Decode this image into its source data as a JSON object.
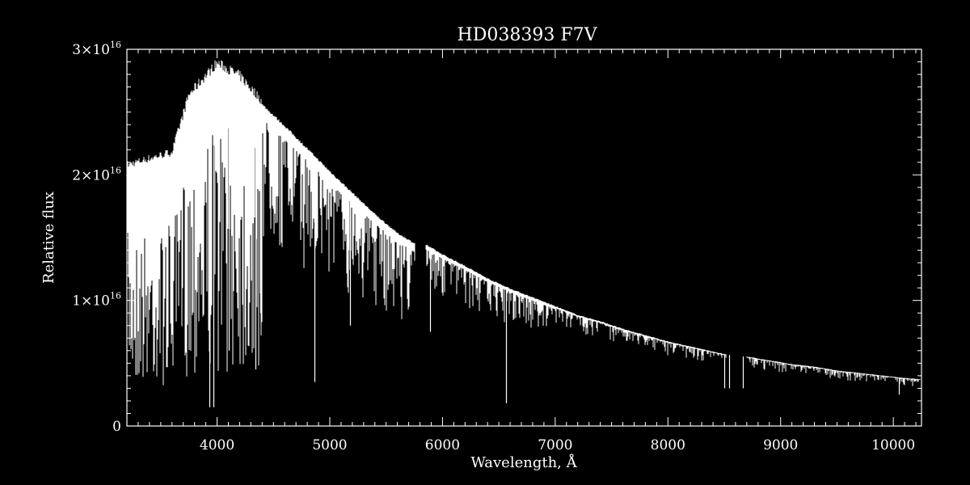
{
  "chart_data": {
    "type": "line",
    "title": "HD038393   F7V",
    "xlabel": "Wavelength, Å",
    "ylabel": "Relative flux",
    "xlim": [
      3200,
      10250
    ],
    "ylim": [
      0,
      3e+16
    ],
    "xticks": [
      4000,
      5000,
      6000,
      7000,
      8000,
      9000,
      10000
    ],
    "yticks": [
      {
        "value": 0,
        "mantissa": "0",
        "exponent": ""
      },
      {
        "value": 1e+16,
        "mantissa": "1×10",
        "exponent": "16"
      },
      {
        "value": 2e+16,
        "mantissa": "2×10",
        "exponent": "16"
      },
      {
        "value": 3e+16,
        "mantissa": "3×10",
        "exponent": "16"
      }
    ],
    "grid": false,
    "colors": {
      "background": "#000000",
      "foreground": "#ffffff"
    },
    "series": [
      {
        "continuum": [
          [
            3200,
            2.05e+16
          ],
          [
            3400,
            2.1e+16
          ],
          [
            3600,
            2.15e+16
          ],
          [
            3750,
            2.6e+16
          ],
          [
            3900,
            2.75e+16
          ],
          [
            4000,
            2.85e+16
          ],
          [
            4200,
            2.75e+16
          ],
          [
            4400,
            2.55e+16
          ],
          [
            4600,
            2.38e+16
          ],
          [
            4800,
            2.2e+16
          ],
          [
            5000,
            2.02e+16
          ],
          [
            5200,
            1.85e+16
          ],
          [
            5400,
            1.68e+16
          ],
          [
            5600,
            1.53e+16
          ],
          [
            5750,
            1.45e+16
          ],
          [
            5850,
            1.44e+16
          ],
          [
            6000,
            1.36e+16
          ],
          [
            6200,
            1.27e+16
          ],
          [
            6400,
            1.17e+16
          ],
          [
            6600,
            1.09e+16
          ],
          [
            6800,
            1.02e+16
          ],
          [
            7000,
            9500000000000000.0
          ],
          [
            7200,
            8800000000000000.0
          ],
          [
            7400,
            8300000000000000.0
          ],
          [
            7600,
            7700000000000000.0
          ],
          [
            7800,
            7200000000000000.0
          ],
          [
            8000,
            6700000000000000.0
          ],
          [
            8200,
            6300000000000000.0
          ],
          [
            8400,
            5900000000000000.0
          ],
          [
            8500,
            5700000000000000.0
          ],
          [
            8700,
            5500000000000000.0
          ],
          [
            8900,
            5200000000000000.0
          ],
          [
            9100,
            4900000000000000.0
          ],
          [
            9300,
            4700000000000000.0
          ],
          [
            9500,
            4400000000000000.0
          ],
          [
            9700,
            4200000000000000.0
          ],
          [
            9900,
            4000000000000000.0
          ],
          [
            10100,
            3800000000000000.0
          ],
          [
            10250,
            3700000000000000.0
          ]
        ],
        "gaps": [
          [
            5760,
            5850
          ],
          [
            8520,
            8700
          ]
        ],
        "absorption_lines": [
          [
            3934,
            1500000000000000.0
          ],
          [
            3968,
            1500000000000000.0
          ],
          [
            4101,
            6000000000000000.0
          ],
          [
            4340,
            4500000000000000.0
          ],
          [
            4383,
            9000000000000000.0
          ],
          [
            4861,
            3500000000000000.0
          ],
          [
            5167,
            1.4e+16
          ],
          [
            5183,
            8000000000000000.0
          ],
          [
            5890,
            7500000000000000.0
          ],
          [
            6563,
            1800000000000000.0
          ],
          [
            8498,
            3000000000000000.0
          ],
          [
            8542,
            3000000000000000.0
          ],
          [
            8662,
            3000000000000000.0
          ],
          [
            10050,
            2500000000000000.0
          ]
        ]
      }
    ]
  }
}
